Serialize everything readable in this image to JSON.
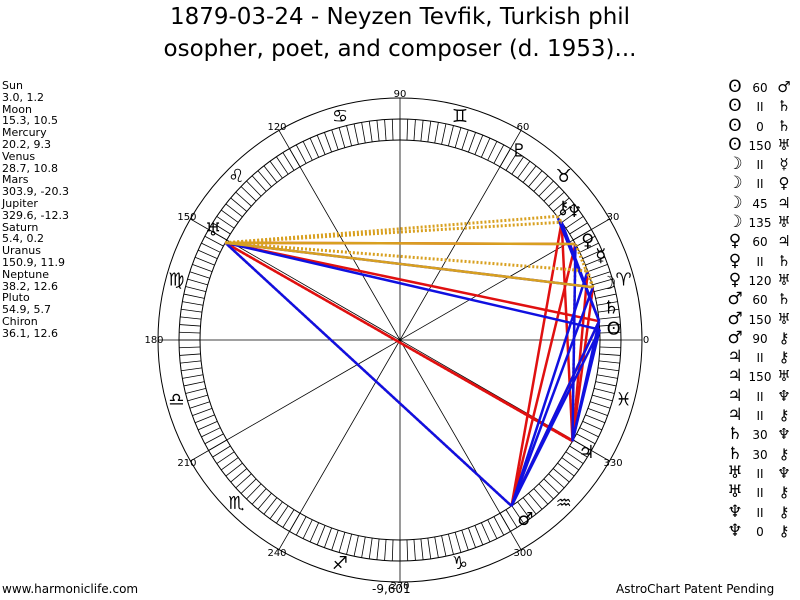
{
  "title_line1": "1879-03-24 - Neyzen Tevfik, Turkish phil",
  "title_line2": "osopher, poet, and composer (d. 1953)...",
  "planets": [
    {
      "name": "Sun",
      "values": "3.0, 1.2"
    },
    {
      "name": "Moon",
      "values": "15.3, 10.5"
    },
    {
      "name": "Mercury",
      "values": "20.2, 9.3"
    },
    {
      "name": "Venus",
      "values": "28.7, 10.8"
    },
    {
      "name": "Mars",
      "values": "303.9, -20.3"
    },
    {
      "name": "Jupiter",
      "values": "329.6, -12.3"
    },
    {
      "name": "Saturn",
      "values": "5.4, 0.2"
    },
    {
      "name": "Uranus",
      "values": "150.9, 11.9"
    },
    {
      "name": "Neptune",
      "values": "38.2, 12.6"
    },
    {
      "name": "Pluto",
      "values": "54.9, 5.7"
    },
    {
      "name": "Chiron",
      "values": "36.1, 12.6"
    }
  ],
  "planet_glyphs": {
    "Sun": "ʘ",
    "Moon": "☽",
    "Mercury": "☿",
    "Venus": "♀",
    "Mars": "♂",
    "Jupiter": "♃",
    "Saturn": "♄",
    "Uranus": "♅",
    "Neptune": "♆",
    "Pluto": "♇",
    "Chiron": "⚷"
  },
  "aspects": [
    {
      "p1": "Sun",
      "value": "60",
      "p2": "Mars"
    },
    {
      "p1": "Sun",
      "value": "II",
      "p2": "Saturn"
    },
    {
      "p1": "Sun",
      "value": "0",
      "p2": "Saturn"
    },
    {
      "p1": "Sun",
      "value": "150",
      "p2": "Uranus"
    },
    {
      "p1": "Moon",
      "value": "II",
      "p2": "Mercury"
    },
    {
      "p1": "Moon",
      "value": "II",
      "p2": "Venus"
    },
    {
      "p1": "Moon",
      "value": "45",
      "p2": "Jupiter"
    },
    {
      "p1": "Moon",
      "value": "135",
      "p2": "Uranus"
    },
    {
      "p1": "Venus",
      "value": "60",
      "p2": "Jupiter"
    },
    {
      "p1": "Venus",
      "value": "II",
      "p2": "Saturn"
    },
    {
      "p1": "Venus",
      "value": "120",
      "p2": "Uranus"
    },
    {
      "p1": "Mars",
      "value": "60",
      "p2": "Saturn"
    },
    {
      "p1": "Mars",
      "value": "150",
      "p2": "Uranus"
    },
    {
      "p1": "Mars",
      "value": "90",
      "p2": "Chiron"
    },
    {
      "p1": "Jupiter",
      "value": "II",
      "p2": "Chiron"
    },
    {
      "p1": "Jupiter",
      "value": "150",
      "p2": "Uranus"
    },
    {
      "p1": "Jupiter",
      "value": "II",
      "p2": "Neptune"
    },
    {
      "p1": "Jupiter",
      "value": "II",
      "p2": "Chiron"
    },
    {
      "p1": "Saturn",
      "value": "30",
      "p2": "Neptune"
    },
    {
      "p1": "Saturn",
      "value": "30",
      "p2": "Chiron"
    },
    {
      "p1": "Uranus",
      "value": "II",
      "p2": "Neptune"
    },
    {
      "p1": "Uranus",
      "value": "II",
      "p2": "Chiron"
    },
    {
      "p1": "Neptune",
      "value": "II",
      "p2": "Chiron"
    },
    {
      "p1": "Neptune",
      "value": "0",
      "p2": "Chiron"
    }
  ],
  "degree_labels": [
    "0",
    "30",
    "60",
    "90",
    "120",
    "150",
    "180",
    "210",
    "240",
    "270",
    "300",
    "330"
  ],
  "zodiac_glyphs": [
    "♈",
    "♉",
    "♊",
    "♋",
    "♌",
    "♍",
    "♎",
    "♏",
    "♐",
    "♑",
    "♒",
    "♓"
  ],
  "colors": {
    "harmonious": "#1010e0",
    "tense": "#e01010",
    "parallel": "#d8a020"
  },
  "footer": {
    "left": "www.harmoniclife.com",
    "center": "-9,601",
    "right": "AstroChart Patent Pending"
  }
}
